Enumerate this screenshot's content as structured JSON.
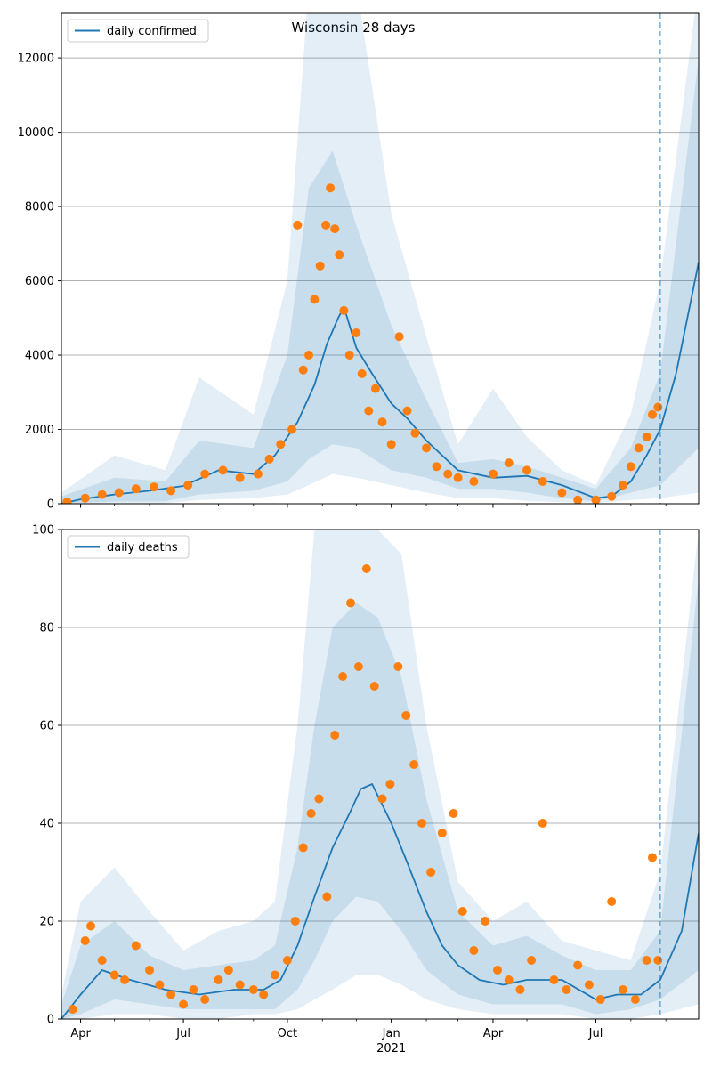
{
  "title": "Wisconsin 28 days",
  "chart_data": [
    {
      "type": "line",
      "panel": "top",
      "legend": {
        "label": "daily confirmed",
        "placement": "upper left"
      },
      "ylim": [
        0,
        13200
      ],
      "yticks": [
        0,
        2000,
        4000,
        6000,
        8000,
        10000,
        12000
      ],
      "grid": "horizontal",
      "forecast_start": "2021-08-27",
      "colors": {
        "line": "#1f77b4",
        "points": "#ff7f0e",
        "band": "#1f77b4"
      },
      "model_line": {
        "x": [
          "2020-03-15",
          "2020-04-01",
          "2020-05-01",
          "2020-06-01",
          "2020-07-01",
          "2020-08-01",
          "2020-09-01",
          "2020-09-20",
          "2020-10-10",
          "2020-10-25",
          "2020-11-05",
          "2020-11-15",
          "2020-11-20",
          "2020-12-01",
          "2020-12-15",
          "2021-01-01",
          "2021-01-15",
          "2021-02-01",
          "2021-03-01",
          "2021-04-01",
          "2021-05-01",
          "2021-06-01",
          "2021-07-01",
          "2021-07-15",
          "2021-08-01",
          "2021-08-15",
          "2021-08-27",
          "2021-09-10",
          "2021-09-20",
          "2021-09-30"
        ],
        "y": [
          0,
          120,
          250,
          350,
          480,
          900,
          800,
          1300,
          2200,
          3200,
          4300,
          5000,
          5300,
          4200,
          3500,
          2700,
          2300,
          1700,
          900,
          700,
          750,
          500,
          150,
          200,
          600,
          1300,
          2000,
          3500,
          5000,
          6500
        ]
      },
      "observed_points": {
        "x": [
          "2020-03-20",
          "2020-04-05",
          "2020-04-20",
          "2020-05-05",
          "2020-05-20",
          "2020-06-05",
          "2020-06-20",
          "2020-07-05",
          "2020-07-20",
          "2020-08-05",
          "2020-08-20",
          "2020-09-05",
          "2020-09-15",
          "2020-09-25",
          "2020-10-05",
          "2020-10-10",
          "2020-10-15",
          "2020-10-20",
          "2020-10-25",
          "2020-10-30",
          "2020-11-04",
          "2020-11-08",
          "2020-11-12",
          "2020-11-16",
          "2020-11-20",
          "2020-11-25",
          "2020-12-01",
          "2020-12-06",
          "2020-12-12",
          "2020-12-18",
          "2020-12-24",
          "2021-01-01",
          "2021-01-08",
          "2021-01-15",
          "2021-01-22",
          "2021-02-01",
          "2021-02-10",
          "2021-02-20",
          "2021-03-01",
          "2021-03-15",
          "2021-04-01",
          "2021-04-15",
          "2021-05-01",
          "2021-05-15",
          "2021-06-01",
          "2021-06-15",
          "2021-07-01",
          "2021-07-15",
          "2021-07-25",
          "2021-08-01",
          "2021-08-08",
          "2021-08-15",
          "2021-08-20",
          "2021-08-25"
        ],
        "y": [
          50,
          150,
          250,
          300,
          400,
          450,
          350,
          500,
          800,
          900,
          700,
          800,
          1200,
          1600,
          2000,
          7500,
          3600,
          4000,
          5500,
          6400,
          7500,
          8500,
          7400,
          6700,
          5200,
          4000,
          4600,
          3500,
          2500,
          3100,
          2200,
          1600,
          4500,
          2500,
          1900,
          1500,
          1000,
          800,
          700,
          600,
          800,
          1100,
          900,
          600,
          300,
          100,
          100,
          200,
          500,
          1000,
          1500,
          1800,
          2400,
          2600
        ]
      },
      "band": {
        "x": [
          "2020-03-15",
          "2020-05-01",
          "2020-06-15",
          "2020-07-15",
          "2020-09-01",
          "2020-10-01",
          "2020-10-20",
          "2020-11-10",
          "2020-12-01",
          "2021-01-01",
          "2021-02-01",
          "2021-03-01",
          "2021-04-01",
          "2021-05-01",
          "2021-06-01",
          "2021-07-01",
          "2021-08-01",
          "2021-08-27",
          "2021-09-30"
        ],
        "outer_upper": [
          300,
          1300,
          900,
          3400,
          2400,
          6000,
          14000,
          14000,
          14000,
          7800,
          4500,
          1600,
          3100,
          1800,
          900,
          500,
          2400,
          6000,
          14000
        ],
        "outer_lower": [
          0,
          20,
          20,
          100,
          150,
          250,
          500,
          800,
          700,
          500,
          300,
          150,
          150,
          80,
          40,
          20,
          100,
          150,
          300
        ],
        "mid_upper": [
          200,
          700,
          600,
          1700,
          1500,
          4000,
          8500,
          9500,
          7500,
          4800,
          2800,
          1100,
          1200,
          1000,
          700,
          400,
          1500,
          3500,
          12000
        ],
        "mid_lower": [
          0,
          60,
          70,
          250,
          350,
          600,
          1200,
          1600,
          1500,
          900,
          700,
          400,
          400,
          300,
          150,
          60,
          300,
          500,
          1500
        ]
      },
      "x_tick_labels": [
        "Apr",
        "Jul",
        "Oct",
        "Jan",
        "Apr",
        "Jul"
      ]
    },
    {
      "type": "line",
      "panel": "bottom",
      "legend": {
        "label": "daily deaths",
        "placement": "upper left"
      },
      "ylim": [
        0,
        100
      ],
      "yticks": [
        0,
        20,
        40,
        60,
        80,
        100
      ],
      "grid": "horizontal",
      "forecast_start": "2021-08-27",
      "colors": {
        "line": "#1f77b4",
        "points": "#ff7f0e",
        "band": "#1f77b4"
      },
      "model_line": {
        "x": [
          "2020-03-15",
          "2020-04-01",
          "2020-04-20",
          "2020-05-15",
          "2020-06-15",
          "2020-07-15",
          "2020-08-15",
          "2020-09-10",
          "2020-09-25",
          "2020-10-10",
          "2020-10-25",
          "2020-11-10",
          "2020-11-25",
          "2020-12-05",
          "2020-12-15",
          "2021-01-01",
          "2021-01-15",
          "2021-02-01",
          "2021-02-15",
          "2021-03-01",
          "2021-03-20",
          "2021-04-10",
          "2021-05-01",
          "2021-06-01",
          "2021-07-01",
          "2021-07-20",
          "2021-08-10",
          "2021-08-27",
          "2021-09-15",
          "2021-09-30"
        ],
        "y": [
          0,
          5,
          10,
          8,
          6,
          5,
          6,
          6,
          8,
          15,
          25,
          35,
          42,
          47,
          48,
          40,
          32,
          22,
          15,
          11,
          8,
          7,
          8,
          8,
          4,
          5,
          5,
          8,
          18,
          38
        ]
      },
      "observed_points": {
        "x": [
          "2020-03-25",
          "2020-04-05",
          "2020-04-10",
          "2020-04-20",
          "2020-05-01",
          "2020-05-10",
          "2020-05-20",
          "2020-06-01",
          "2020-06-10",
          "2020-06-20",
          "2020-07-01",
          "2020-07-10",
          "2020-07-20",
          "2020-08-01",
          "2020-08-10",
          "2020-08-20",
          "2020-09-01",
          "2020-09-10",
          "2020-09-20",
          "2020-10-01",
          "2020-10-08",
          "2020-10-15",
          "2020-10-22",
          "2020-10-29",
          "2020-11-05",
          "2020-11-12",
          "2020-11-19",
          "2020-11-26",
          "2020-12-03",
          "2020-12-10",
          "2020-12-17",
          "2020-12-24",
          "2020-12-31",
          "2021-01-07",
          "2021-01-14",
          "2021-01-21",
          "2021-01-28",
          "2021-02-05",
          "2021-02-15",
          "2021-02-25",
          "2021-03-05",
          "2021-03-15",
          "2021-03-25",
          "2021-04-05",
          "2021-04-15",
          "2021-04-25",
          "2021-05-05",
          "2021-05-15",
          "2021-05-25",
          "2021-06-05",
          "2021-06-15",
          "2021-06-25",
          "2021-07-05",
          "2021-07-15",
          "2021-07-25",
          "2021-08-05",
          "2021-08-15",
          "2021-08-20",
          "2021-08-25"
        ],
        "y": [
          2,
          16,
          19,
          12,
          9,
          8,
          15,
          10,
          7,
          5,
          3,
          6,
          4,
          8,
          10,
          7,
          6,
          5,
          9,
          12,
          20,
          35,
          42,
          45,
          25,
          58,
          70,
          85,
          72,
          92,
          68,
          45,
          48,
          72,
          62,
          52,
          40,
          30,
          38,
          42,
          22,
          14,
          20,
          10,
          8,
          6,
          12,
          40,
          8,
          6,
          11,
          7,
          4,
          24,
          6,
          4,
          12,
          33,
          12
        ]
      },
      "band": {
        "x": [
          "2020-03-15",
          "2020-04-01",
          "2020-05-01",
          "2020-06-01",
          "2020-07-01",
          "2020-08-01",
          "2020-09-01",
          "2020-09-20",
          "2020-10-10",
          "2020-10-25",
          "2020-11-10",
          "2020-12-01",
          "2020-12-20",
          "2021-01-10",
          "2021-02-01",
          "2021-03-01",
          "2021-04-01",
          "2021-05-01",
          "2021-06-01",
          "2021-07-01",
          "2021-08-01",
          "2021-08-27",
          "2021-09-30"
        ],
        "outer_upper": [
          5,
          24,
          31,
          22,
          14,
          18,
          20,
          24,
          60,
          100,
          100,
          100,
          100,
          95,
          60,
          28,
          20,
          24,
          16,
          14,
          12,
          30,
          100
        ],
        "outer_lower": [
          0,
          0,
          1,
          1,
          0,
          0,
          1,
          1,
          2,
          4,
          6,
          9,
          9,
          7,
          4,
          2,
          1,
          1,
          1,
          0,
          0,
          1,
          3
        ],
        "mid_upper": [
          3,
          15,
          20,
          13,
          10,
          11,
          12,
          15,
          35,
          60,
          80,
          85,
          82,
          70,
          45,
          22,
          15,
          17,
          13,
          10,
          10,
          18,
          90
        ],
        "mid_lower": [
          0,
          1,
          4,
          3,
          2,
          2,
          2,
          2,
          6,
          12,
          20,
          25,
          24,
          18,
          10,
          5,
          3,
          3,
          3,
          1,
          2,
          4,
          10
        ]
      },
      "x_tick_labels": [
        "Apr",
        "Jul",
        "Oct",
        "Jan",
        "Apr",
        "Jul"
      ],
      "x_tick_secondary": "2021"
    }
  ]
}
